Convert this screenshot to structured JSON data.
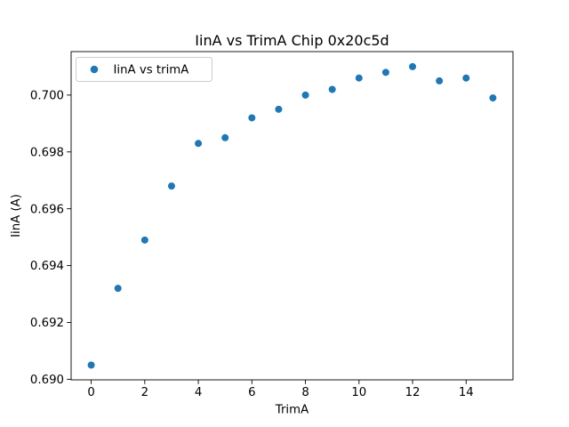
{
  "chart_data": {
    "type": "scatter",
    "title": "IinA vs TrimA Chip 0x20c5d",
    "xlabel": "TrimA",
    "ylabel": "IinA (A)",
    "x": [
      0,
      1,
      2,
      3,
      4,
      5,
      6,
      7,
      8,
      9,
      10,
      11,
      12,
      13,
      14,
      15
    ],
    "series": [
      {
        "name": "IinA vs trimA",
        "values": [
          0.6905,
          0.6932,
          0.6949,
          0.6968,
          0.6983,
          0.6985,
          0.6992,
          0.6995,
          0.7,
          0.7002,
          0.7006,
          0.7008,
          0.701,
          0.7005,
          0.7006,
          0.6999
        ]
      }
    ],
    "xlim": [
      -0.75,
      15.75
    ],
    "ylim": [
      0.68998,
      0.70153
    ],
    "xticks": [
      0,
      2,
      4,
      6,
      8,
      10,
      12,
      14
    ],
    "yticks": [
      0.69,
      0.692,
      0.694,
      0.696,
      0.698,
      0.7
    ],
    "ytick_decimals": 3,
    "grid": false,
    "legend_position": "upper left",
    "marker_shape": "circle",
    "marker_color": "#1f77b4",
    "axis_color": "#000000",
    "legend_border_color": "#cccccc",
    "background_color": "#ffffff"
  }
}
